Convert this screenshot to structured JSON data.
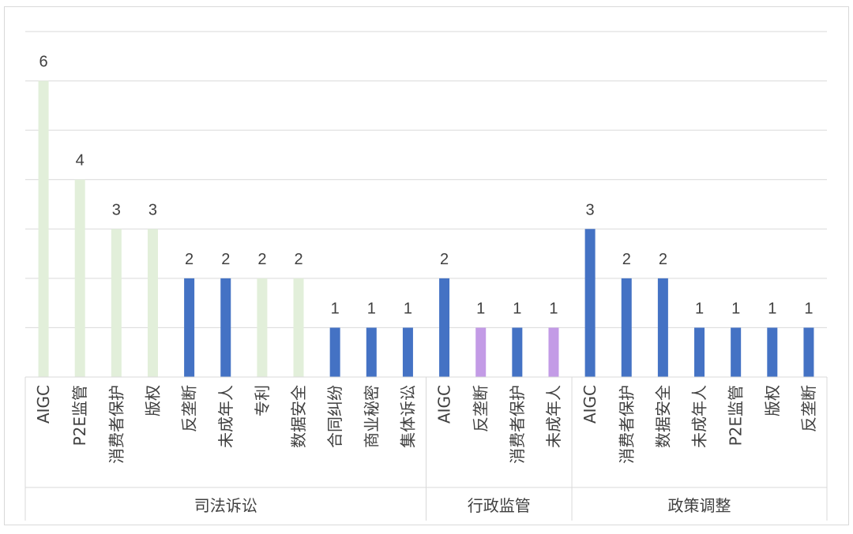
{
  "chart_data": {
    "type": "bar",
    "ylim": [
      0,
      7
    ],
    "grid": true,
    "gridline_step": 1,
    "show_y_axis_labels": false,
    "colors": {
      "light_green": "#e2efda",
      "blue": "#4472c4",
      "purple": "#c39be6",
      "grid": "#d9d9d9",
      "text": "#404040",
      "border": "#d9d9d9"
    },
    "groups": [
      {
        "name": "司法诉讼",
        "bars": [
          {
            "category": "AIGC",
            "value": 6,
            "color": "light_green"
          },
          {
            "category": "P2E监管",
            "value": 4,
            "color": "light_green"
          },
          {
            "category": "消费者保护",
            "value": 3,
            "color": "light_green"
          },
          {
            "category": "版权",
            "value": 3,
            "color": "light_green"
          },
          {
            "category": "反垄断",
            "value": 2,
            "color": "blue"
          },
          {
            "category": "未成年人",
            "value": 2,
            "color": "blue"
          },
          {
            "category": "专利",
            "value": 2,
            "color": "light_green"
          },
          {
            "category": "数据安全",
            "value": 2,
            "color": "light_green"
          },
          {
            "category": "合同纠纷",
            "value": 1,
            "color": "blue"
          },
          {
            "category": "商业秘密",
            "value": 1,
            "color": "blue"
          },
          {
            "category": "集体诉讼",
            "value": 1,
            "color": "blue"
          }
        ]
      },
      {
        "name": "行政监管",
        "bars": [
          {
            "category": "AIGC",
            "value": 2,
            "color": "blue"
          },
          {
            "category": "反垄断",
            "value": 1,
            "color": "purple"
          },
          {
            "category": "消费者保护",
            "value": 1,
            "color": "blue"
          },
          {
            "category": "未成年人",
            "value": 1,
            "color": "purple"
          }
        ]
      },
      {
        "name": "政策调整",
        "bars": [
          {
            "category": "AIGC",
            "value": 3,
            "color": "blue"
          },
          {
            "category": "消费者保护",
            "value": 2,
            "color": "blue"
          },
          {
            "category": "数据安全",
            "value": 2,
            "color": "blue"
          },
          {
            "category": "未成年人",
            "value": 1,
            "color": "blue"
          },
          {
            "category": "P2E监管",
            "value": 1,
            "color": "blue"
          },
          {
            "category": "版权",
            "value": 1,
            "color": "blue"
          },
          {
            "category": "反垄断",
            "value": 1,
            "color": "blue"
          }
        ]
      }
    ]
  }
}
